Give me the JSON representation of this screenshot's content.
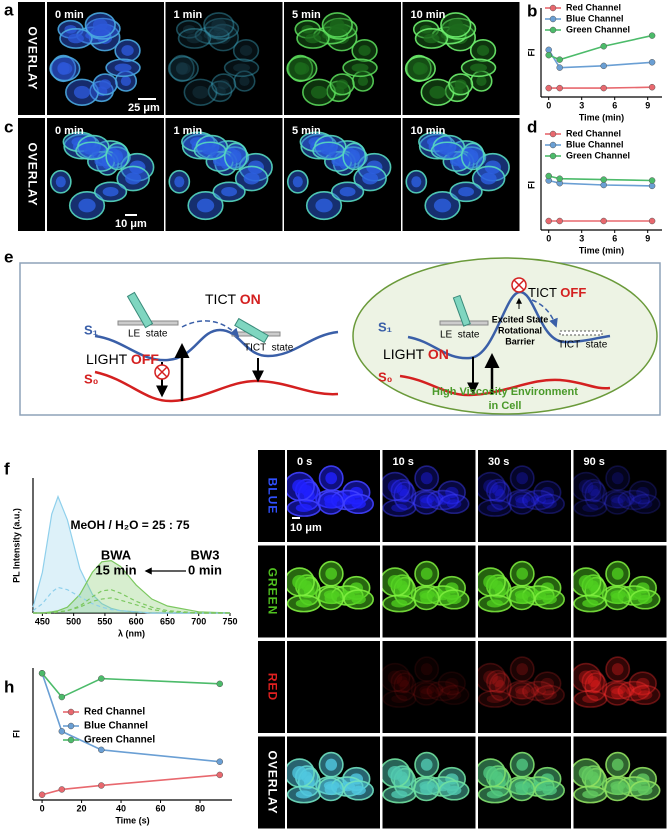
{
  "panels": {
    "a": {
      "label": "a",
      "side": "OVERLAY",
      "times": [
        "0 min",
        "1 min",
        "5 min",
        "10 min"
      ],
      "scale_bar": "25 μm"
    },
    "c": {
      "label": "c",
      "side": "OVERLAY",
      "times": [
        "0 min",
        "1 min",
        "5 min",
        "10 min"
      ],
      "scale_bar": "10 μm"
    },
    "e": {
      "label": "e",
      "left": {
        "tict": "TICT",
        "tict_word": "ON",
        "s1": "S₁",
        "le_state": "LE  state",
        "tict_state": "TICT  state",
        "light": "LIGHT",
        "light_word": "OFF",
        "s0": "S₀"
      },
      "right": {
        "tict": "TICT",
        "tict_word": "OFF",
        "s1": "S₁",
        "le_state": "LE  state",
        "tict_state": "TICT  state",
        "barrier": [
          "Excited State",
          "Rotational",
          "Barrier"
        ],
        "light": "LIGHT",
        "light_word": "ON",
        "s0": "S₀",
        "environment": [
          "High Viscosity Environment",
          "in Cell"
        ]
      }
    },
    "g": {
      "label": "g",
      "rows": [
        "BLUE",
        "GREEN",
        "RED",
        "OVERLAY"
      ],
      "times": [
        "0 s",
        "10 s",
        "30 s",
        "90 s"
      ],
      "scale_bar": "10 μm"
    }
  },
  "chart_data": [
    {
      "panel": "b",
      "type": "line",
      "x": [
        0,
        1,
        5,
        9.4
      ],
      "xlim": [
        -0.7,
        10.3
      ],
      "xticks": [
        0,
        3,
        6,
        9
      ],
      "ylim": [
        0,
        100
      ],
      "xlabel": "Time (min)",
      "ylabel": "FI",
      "legend": "upper left",
      "markers": true,
      "series": [
        {
          "name": "Red Channel",
          "color": "#e8686e",
          "values": [
            10,
            10,
            10,
            11
          ]
        },
        {
          "name": "Blue Channel",
          "color": "#6a9fd4",
          "values": [
            53,
            33,
            35,
            39
          ]
        },
        {
          "name": "Green Channel",
          "color": "#4cbb6a",
          "values": [
            47,
            42,
            57,
            69
          ]
        }
      ]
    },
    {
      "panel": "d",
      "type": "line",
      "x": [
        0,
        1,
        5,
        9.4
      ],
      "xlim": [
        -0.7,
        10.3
      ],
      "xticks": [
        0,
        3,
        6,
        9
      ],
      "ylim": [
        0,
        100
      ],
      "xlabel": "Time (min)",
      "ylabel": "FI",
      "legend": "upper left",
      "markers": true,
      "series": [
        {
          "name": "Red Channel",
          "color": "#e8686e",
          "values": [
            10,
            10,
            10,
            10
          ]
        },
        {
          "name": "Blue Channel",
          "color": "#6a9fd4",
          "values": [
            55,
            52,
            50,
            49
          ]
        },
        {
          "name": "Green Channel",
          "color": "#4cbb6a",
          "values": [
            60,
            57,
            56,
            55
          ]
        }
      ]
    },
    {
      "panel": "f",
      "type": "line",
      "x": [
        435,
        450,
        465,
        475,
        490,
        510,
        530,
        545,
        560,
        575,
        600,
        625,
        650,
        700,
        750
      ],
      "xlim": [
        435,
        750
      ],
      "xticks": [
        450,
        500,
        550,
        600,
        650,
        700,
        750
      ],
      "ylim": [
        0,
        116
      ],
      "xlabel": "λ (nm)",
      "ylabel": "PL Intensity (a.u.)",
      "markers": false,
      "annotations": [
        "MeOH / H₂O = 25 : 75",
        "BWA",
        "15 min",
        "BW3",
        "0 min"
      ],
      "series": [
        {
          "color": "#8fd0ec",
          "fill": true,
          "values": [
            5,
            35,
            85,
            100,
            80,
            38,
            16,
            8,
            4,
            2,
            1,
            0,
            0,
            0,
            0
          ]
        },
        {
          "color": "#7cc860",
          "fill": true,
          "values": [
            0,
            0,
            1,
            2,
            5,
            16,
            35,
            44,
            45,
            40,
            24,
            12,
            6,
            1,
            0
          ]
        },
        {
          "color": "#8fd0ec",
          "dashed": true,
          "values": [
            2,
            8,
            18,
            22,
            20,
            14,
            8,
            5,
            3,
            2,
            1,
            0,
            0,
            0,
            0
          ]
        },
        {
          "color": "#7cc860",
          "dashed": true,
          "values": [
            0,
            0,
            0,
            1,
            2,
            6,
            14,
            19,
            20,
            17,
            10,
            5,
            2,
            0,
            0
          ]
        },
        {
          "color": "#7cc860",
          "dashed": true,
          "values": [
            0,
            0,
            0,
            1,
            2,
            5,
            10,
            12,
            13,
            11,
            7,
            3,
            1,
            0,
            0
          ]
        }
      ]
    },
    {
      "panel": "h",
      "type": "line",
      "x": [
        0,
        10,
        30,
        90
      ],
      "xlim": [
        -4.6,
        96.2
      ],
      "xticks": [
        0,
        20,
        40,
        60,
        80
      ],
      "ylim": [
        0,
        100
      ],
      "xlabel": "Time (s)",
      "ylabel": "FI",
      "legend": "center left",
      "markers": true,
      "series": [
        {
          "name": "Red Channel",
          "color": "#e8686e",
          "values": [
            4,
            8,
            11,
            19
          ]
        },
        {
          "name": "Blue Channel",
          "color": "#6a9fd4",
          "values": [
            96,
            52,
            38,
            29
          ]
        },
        {
          "name": "Green Channel",
          "color": "#4cbb6a",
          "values": [
            96,
            78,
            92,
            88
          ]
        }
      ]
    }
  ]
}
